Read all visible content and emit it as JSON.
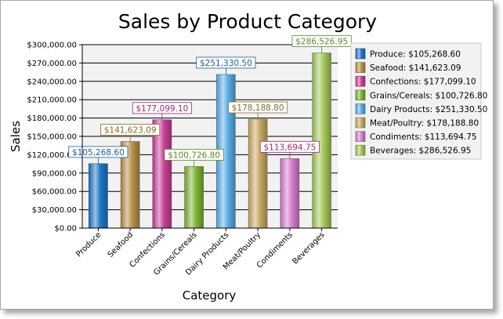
{
  "chart_data": {
    "type": "bar",
    "title": "Sales by Product Category",
    "xlabel": "Category",
    "ylabel": "Sales",
    "ylim": [
      0,
      300000
    ],
    "ytick_step": 30000,
    "yticks": [
      "$0.00",
      "$30,000.00",
      "$60,000.00",
      "$90,000.00",
      "$120,000.00",
      "$150,000.00",
      "$180,000.00",
      "$210,000.00",
      "$240,000.00",
      "$270,000.00",
      "$300,000.00"
    ],
    "grid": true,
    "legend_position": "right",
    "categories": [
      "Produce",
      "Seafood",
      "Confections",
      "Grains/Cereals",
      "Dairy Products",
      "Meat/Poultry",
      "Condiments",
      "Beverages"
    ],
    "values": [
      105268.6,
      141623.09,
      177099.1,
      100726.8,
      251330.5,
      178188.8,
      113694.75,
      286526.95
    ],
    "data_labels": [
      "$105,268.60",
      "$141,623.09",
      "$177,099.10",
      "$100,726.80",
      "$251,330.50",
      "$178,188.80",
      "$113,694.75",
      "$286,526.95"
    ],
    "legend": [
      "Produce: $105,268.60",
      "Seafood: $141,623.09",
      "Confections: $177,099.10",
      "Grains/Cereals: $100,726.80",
      "Dairy Products: $251,330.50",
      "Meat/Poultry: $178,188.80",
      "Condiments: $113,694.75",
      "Beverages: $286,526.95"
    ],
    "colors": [
      "#1f78c8",
      "#b8924a",
      "#c9409a",
      "#7fb534",
      "#5aaee6",
      "#c9aa66",
      "#d57fcf",
      "#a4c95a"
    ],
    "label_colors": [
      "#1a5f9a",
      "#8a6a2a",
      "#9a2a78",
      "#5a8a20",
      "#1a5f9a",
      "#8a6a2a",
      "#9a2a78",
      "#5a8a20"
    ]
  }
}
